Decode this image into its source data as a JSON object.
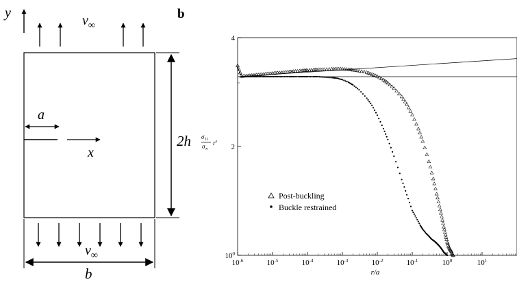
{
  "figure_a": {
    "axis_y_label": "y",
    "velocity_top": "v",
    "velocity_bottom": "v",
    "velocity_subscript": "∞",
    "crack_label": "a",
    "axis_x_label": "x",
    "height_label": "2h",
    "width_label": "b",
    "stress_fraction_num": "σ",
    "stress_fraction_num_sub": "11",
    "stress_fraction_den": "σ",
    "stress_fraction_den_sub": "∞",
    "stress_r": "r",
    "stress_r_sup": "s"
  },
  "figure_b": {
    "panel_label": "b"
  },
  "chart_data": {
    "type": "scatter",
    "title": "",
    "xlabel": "r/a",
    "ylabel": "",
    "xscale": "log",
    "yscale": "log",
    "xlim": [
      1e-06,
      100
    ],
    "ylim": [
      1,
      4
    ],
    "x_tick_labels": [
      {
        "base": "10",
        "exp": "-6"
      },
      {
        "base": "10",
        "exp": "-5"
      },
      {
        "base": "10",
        "exp": "-4"
      },
      {
        "base": "10",
        "exp": "-3"
      },
      {
        "base": "10",
        "exp": "-2"
      },
      {
        "base": "10",
        "exp": "-1"
      },
      {
        "base": "10",
        "exp": "0"
      },
      {
        "base": "10",
        "exp": "1"
      }
    ],
    "x_tick_values": [
      1e-06,
      1e-05,
      0.0001,
      0.001,
      0.01,
      0.1,
      1,
      10
    ],
    "y_tick_labels": [
      {
        "base": "10",
        "exp": "0",
        "value": 1
      },
      {
        "base": "2",
        "exp": "",
        "value": 2
      },
      {
        "base": "4",
        "exp": "",
        "value": 4
      }
    ],
    "legend_position": "bottom-left",
    "series": [
      {
        "name": "Post-buckling",
        "marker": "triangle",
        "x": [
          1e-06,
          1.3e-06,
          1.8e-06,
          2.5e-06,
          3.5e-06,
          5e-06,
          7e-06,
          1e-05,
          1.4e-05,
          2e-05,
          3e-05,
          4e-05,
          6e-05,
          8e-05,
          0.0001,
          0.00015,
          0.0002,
          0.0003,
          0.0005,
          0.0007,
          0.001,
          0.0015,
          0.002,
          0.003,
          0.005,
          0.007,
          0.01,
          0.015,
          0.02,
          0.03,
          0.05,
          0.07,
          0.1,
          0.15,
          0.2,
          0.3,
          0.4,
          0.5,
          0.6,
          0.7,
          0.8,
          0.9,
          1.0,
          1.1,
          1.2,
          1.3,
          1.4,
          1.5
        ],
        "y": [
          3.35,
          3.13,
          3.14,
          3.15,
          3.16,
          3.17,
          3.18,
          3.19,
          3.2,
          3.21,
          3.22,
          3.23,
          3.24,
          3.25,
          3.25,
          3.26,
          3.27,
          3.27,
          3.28,
          3.28,
          3.28,
          3.27,
          3.26,
          3.24,
          3.21,
          3.17,
          3.13,
          3.06,
          3.0,
          2.9,
          2.75,
          2.62,
          2.45,
          2.24,
          2.07,
          1.82,
          1.63,
          1.48,
          1.37,
          1.28,
          1.2,
          1.14,
          1.09,
          1.06,
          1.04,
          1.03,
          1.01,
          1.0
        ]
      },
      {
        "name": "Buckle restrained",
        "marker": "dot",
        "x": [
          1e-06,
          1.3e-06,
          1.8e-06,
          2.5e-06,
          3.5e-06,
          5e-06,
          7e-06,
          1e-05,
          1.4e-05,
          2e-05,
          3e-05,
          4e-05,
          6e-05,
          8e-05,
          0.0001,
          0.00015,
          0.0002,
          0.0003,
          0.0005,
          0.0007,
          0.001,
          0.0015,
          0.002,
          0.003,
          0.005,
          0.007,
          0.01,
          0.015,
          0.02,
          0.03,
          0.05,
          0.07,
          0.1,
          0.13,
          0.17,
          0.2,
          0.25,
          0.3,
          0.35,
          0.4,
          0.45,
          0.5,
          0.55,
          0.6,
          0.65,
          0.7,
          0.75,
          0.8,
          0.85,
          0.9,
          0.95,
          1.0
        ],
        "y": [
          3.3,
          3.12,
          3.12,
          3.12,
          3.12,
          3.12,
          3.12,
          3.12,
          3.12,
          3.12,
          3.12,
          3.12,
          3.12,
          3.12,
          3.12,
          3.12,
          3.12,
          3.11,
          3.1,
          3.09,
          3.06,
          3.01,
          2.96,
          2.87,
          2.72,
          2.6,
          2.44,
          2.24,
          2.09,
          1.88,
          1.62,
          1.47,
          1.33,
          1.27,
          1.21,
          1.18,
          1.15,
          1.13,
          1.11,
          1.1,
          1.09,
          1.08,
          1.07,
          1.06,
          1.05,
          1.04,
          1.03,
          1.02,
          1.015,
          1.01,
          1.005,
          1.0
        ]
      }
    ],
    "reference_lines": [
      {
        "x": [
          1e-06,
          100
        ],
        "y": [
          3.12,
          3.12
        ]
      },
      {
        "x": [
          1e-06,
          100
        ],
        "y": [
          3.12,
          3.5
        ]
      }
    ]
  }
}
